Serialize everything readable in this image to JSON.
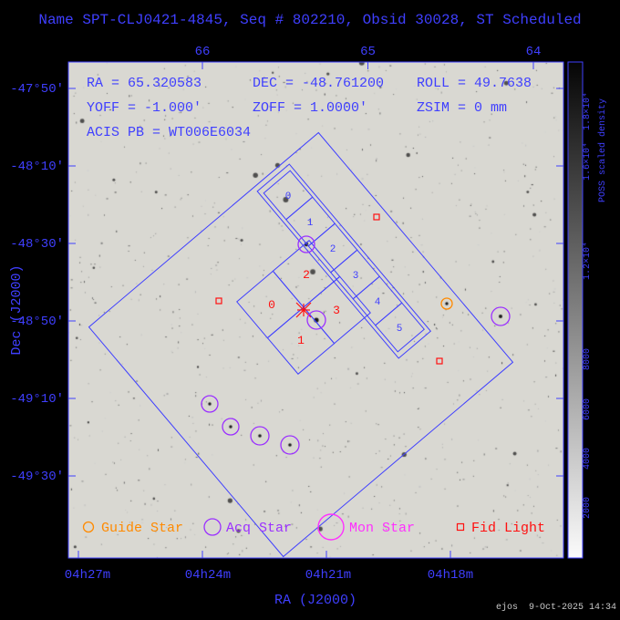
{
  "title": "Name SPT-CLJ0421-4845, Seq # 802210, Obsid 30028, ST Scheduled",
  "info": {
    "ra": "RA = 65.320583",
    "dec": "DEC = -48.761200",
    "roll": "ROLL = 49.7638",
    "yoff": "YOFF = -1.000'",
    "zoff": "ZOFF = 1.0000'",
    "zsim": "ZSIM = 0 mm",
    "acis_pb": "ACIS PB = WT006E6034"
  },
  "axes": {
    "top_ticks": [
      "66",
      "65",
      "64"
    ],
    "bottom_ticks": [
      "04h27m",
      "04h24m",
      "04h21m",
      "04h18m"
    ],
    "left_ticks": [
      "-47°50'",
      "-48°10'",
      "-48°30'",
      "-48°50'",
      "-49°10'",
      "-49°30'"
    ],
    "x_label": "RA (J2000)",
    "y_label": "Dec (J2000)"
  },
  "colorbar": {
    "labels": [
      "2000",
      "4000",
      "6000",
      "8000",
      "1.2×10⁴",
      "1.6×10⁴",
      "1.8×10⁴"
    ],
    "title": "POSS scaled density"
  },
  "chips": {
    "s_array": [
      "0",
      "1",
      "2",
      "3",
      "4",
      "5"
    ],
    "i_array": [
      "0",
      "1",
      "2",
      "3"
    ]
  },
  "legend": {
    "guide": "Guide Star",
    "acq": "Acq Star",
    "mon": "Mon Star",
    "fid": "Fid Light"
  },
  "footer": "ejos  9-Oct-2025 14:34",
  "colors": {
    "blue": "#3f3fff",
    "red": "#ff1010",
    "orange": "#ff8a00",
    "violet": "#9b30ff",
    "magenta": "#ff30ff",
    "sky_bg": "#d9d8d2"
  }
}
